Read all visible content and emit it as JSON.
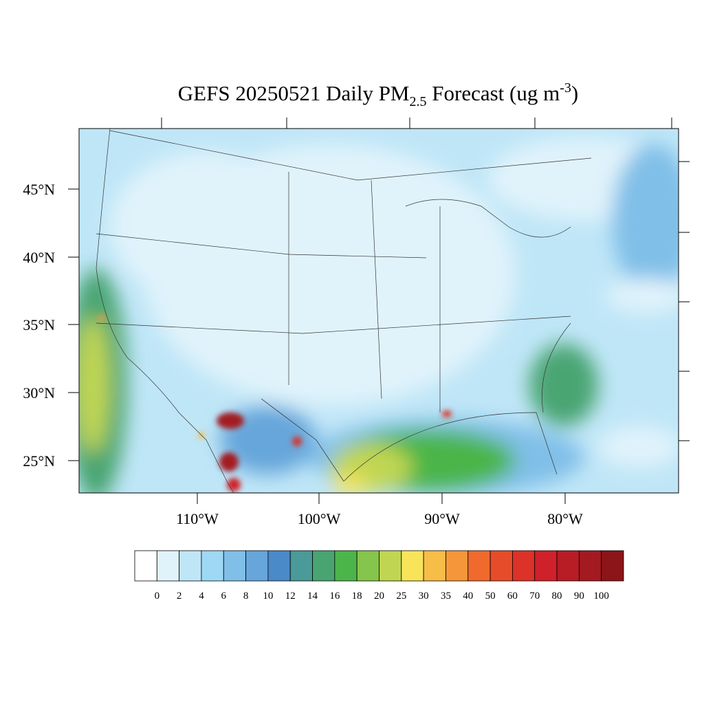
{
  "title": {
    "main": "GEFS 20250521 Daily PM",
    "subscript": "2.5",
    "middle": " Forecast (ug m",
    "superscript": "-3",
    "end": ")"
  },
  "map": {
    "lat_labels": [
      "45°N",
      "40°N",
      "35°N",
      "30°N",
      "25°N"
    ],
    "lon_labels": [
      "110°W",
      "100°W",
      "90°W",
      "80°W"
    ]
  },
  "colorbar": {
    "levels": [
      "0",
      "2",
      "4",
      "6",
      "8",
      "10",
      "12",
      "14",
      "16",
      "18",
      "20",
      "25",
      "30",
      "35",
      "40",
      "50",
      "60",
      "70",
      "80",
      "90",
      "100"
    ],
    "colors": [
      "#ffffff",
      "#e0f3fb",
      "#bfe6f7",
      "#9fd8f4",
      "#80bfe8",
      "#66a6da",
      "#4a8ac8",
      "#4a9a9a",
      "#48a572",
      "#4cb54a",
      "#85c54b",
      "#c0d652",
      "#f7e45a",
      "#f6bd47",
      "#f5963a",
      "#f06a2d",
      "#e64c2a",
      "#dc3228",
      "#d0202b",
      "#b81c25",
      "#a31a20",
      "#8b1518"
    ]
  }
}
